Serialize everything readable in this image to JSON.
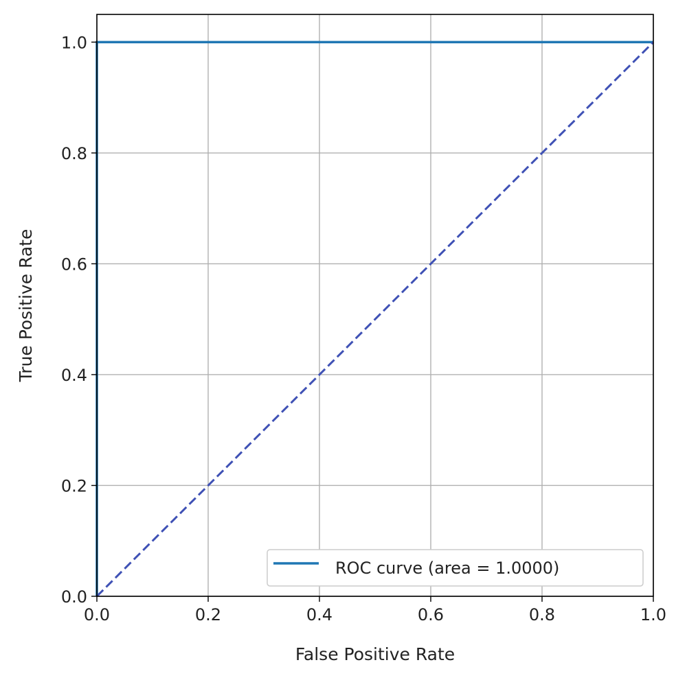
{
  "chart_data": {
    "type": "line",
    "title": "",
    "xlabel": "False Positive Rate",
    "ylabel": "True Positive Rate",
    "xlim": [
      0.0,
      1.0
    ],
    "ylim": [
      0.0,
      1.05
    ],
    "xticks": [
      "0.0",
      "0.2",
      "0.4",
      "0.6",
      "0.8",
      "1.0"
    ],
    "yticks": [
      "0.0",
      "0.2",
      "0.4",
      "0.6",
      "0.8",
      "1.0"
    ],
    "grid": true,
    "legend_position": "lower-right",
    "series": [
      {
        "name": "ROC curve (area = 1.0000)",
        "style": "solid",
        "color": "#1f77b4",
        "x": [
          0.0,
          0.0,
          1.0
        ],
        "y": [
          0.0,
          1.0,
          1.0
        ]
      },
      {
        "style": "dashed",
        "color": "#3f51b5",
        "x": [
          0.0,
          1.0
        ],
        "y": [
          0.0,
          1.0
        ]
      }
    ]
  }
}
